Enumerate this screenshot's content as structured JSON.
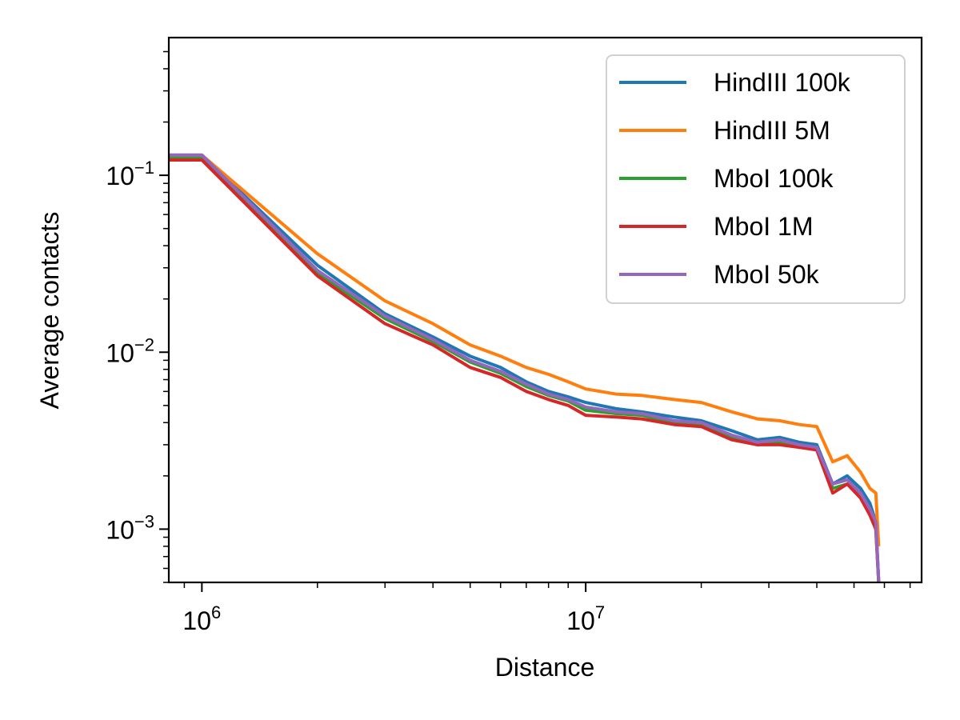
{
  "chart_data": {
    "type": "line",
    "xlabel": "Distance",
    "ylabel": "Average contacts",
    "x_scale": "log",
    "y_scale": "log",
    "xlim": [
      820000,
      75000000
    ],
    "ylim": [
      0.0005,
      0.6
    ],
    "x_ticks": [
      {
        "value": 1000000,
        "base": "10",
        "exp": "6"
      },
      {
        "value": 10000000,
        "base": "10",
        "exp": "7"
      }
    ],
    "y_ticks": [
      {
        "value": 0.1,
        "base": "10",
        "exp": "−1"
      },
      {
        "value": 0.01,
        "base": "10",
        "exp": "−2"
      },
      {
        "value": 0.001,
        "base": "10",
        "exp": "−3"
      }
    ],
    "grid": false,
    "legend_position": "top-right",
    "series": [
      {
        "name": "HindIII 100k",
        "color": "#1f77b4",
        "x": [
          820000,
          1000000,
          2000000,
          3000000,
          4000000,
          5000000,
          6000000,
          7000000,
          8000000,
          9000000,
          10000000,
          12000000,
          14000000,
          17000000,
          20000000,
          24000000,
          28000000,
          32000000,
          36000000,
          40000000,
          44000000,
          48000000,
          52000000,
          55000000,
          57000000,
          58000000
        ],
        "y": [
          0.13,
          0.13,
          0.031,
          0.0165,
          0.0122,
          0.0095,
          0.0082,
          0.0068,
          0.006,
          0.0056,
          0.0052,
          0.0048,
          0.0046,
          0.0043,
          0.0041,
          0.0036,
          0.0032,
          0.0033,
          0.0031,
          0.003,
          0.0018,
          0.002,
          0.0017,
          0.0014,
          0.0011,
          0.0005
        ]
      },
      {
        "name": "HindIII 5M",
        "color": "#ff7f0e",
        "x": [
          820000,
          1000000,
          2000000,
          3000000,
          4000000,
          5000000,
          6000000,
          7000000,
          8000000,
          9000000,
          10000000,
          12000000,
          14000000,
          17000000,
          20000000,
          24000000,
          28000000,
          32000000,
          36000000,
          40000000,
          44000000,
          48000000,
          52000000,
          55000000,
          57000000,
          58000000
        ],
        "y": [
          0.13,
          0.13,
          0.036,
          0.0195,
          0.0145,
          0.011,
          0.0095,
          0.0082,
          0.0075,
          0.0068,
          0.0062,
          0.0058,
          0.0057,
          0.0054,
          0.0052,
          0.0046,
          0.0042,
          0.0041,
          0.0039,
          0.0038,
          0.0024,
          0.0026,
          0.0021,
          0.0017,
          0.0016,
          0.0008
        ]
      },
      {
        "name": "MboI 100k",
        "color": "#2ca02c",
        "x": [
          820000,
          1000000,
          2000000,
          3000000,
          4000000,
          5000000,
          6000000,
          7000000,
          8000000,
          9000000,
          10000000,
          12000000,
          14000000,
          17000000,
          20000000,
          24000000,
          28000000,
          32000000,
          36000000,
          40000000,
          44000000,
          48000000,
          52000000,
          55000000,
          57000000,
          58000000
        ],
        "y": [
          0.125,
          0.125,
          0.028,
          0.0155,
          0.0115,
          0.0088,
          0.0076,
          0.0064,
          0.0057,
          0.0053,
          0.0047,
          0.0045,
          0.0044,
          0.004,
          0.0039,
          0.0033,
          0.003,
          0.0031,
          0.0029,
          0.0029,
          0.0017,
          0.0018,
          0.0016,
          0.0012,
          0.001,
          0.0005
        ]
      },
      {
        "name": "MboI 1M",
        "color": "#d62728",
        "x": [
          820000,
          1000000,
          2000000,
          3000000,
          4000000,
          5000000,
          6000000,
          7000000,
          8000000,
          9000000,
          10000000,
          12000000,
          14000000,
          17000000,
          20000000,
          24000000,
          28000000,
          32000000,
          36000000,
          40000000,
          44000000,
          48000000,
          52000000,
          55000000,
          57000000,
          58000000
        ],
        "y": [
          0.122,
          0.122,
          0.027,
          0.0145,
          0.011,
          0.0082,
          0.0072,
          0.006,
          0.0054,
          0.005,
          0.0044,
          0.0043,
          0.0042,
          0.0039,
          0.0038,
          0.0032,
          0.003,
          0.003,
          0.0029,
          0.0028,
          0.0016,
          0.0018,
          0.0015,
          0.0012,
          0.001,
          0.0005
        ]
      },
      {
        "name": "MboI 50k",
        "color": "#9467bd",
        "x": [
          820000,
          1000000,
          2000000,
          3000000,
          4000000,
          5000000,
          6000000,
          7000000,
          8000000,
          9000000,
          10000000,
          12000000,
          14000000,
          17000000,
          20000000,
          24000000,
          28000000,
          32000000,
          36000000,
          40000000,
          44000000,
          48000000,
          52000000,
          55000000,
          57000000,
          58000000
        ],
        "y": [
          0.13,
          0.13,
          0.029,
          0.016,
          0.0118,
          0.009,
          0.0078,
          0.0066,
          0.0058,
          0.0054,
          0.0049,
          0.0046,
          0.0045,
          0.0041,
          0.004,
          0.0034,
          0.0031,
          0.0032,
          0.003,
          0.0029,
          0.0018,
          0.0019,
          0.0016,
          0.0013,
          0.0011,
          0.0005
        ]
      }
    ]
  }
}
